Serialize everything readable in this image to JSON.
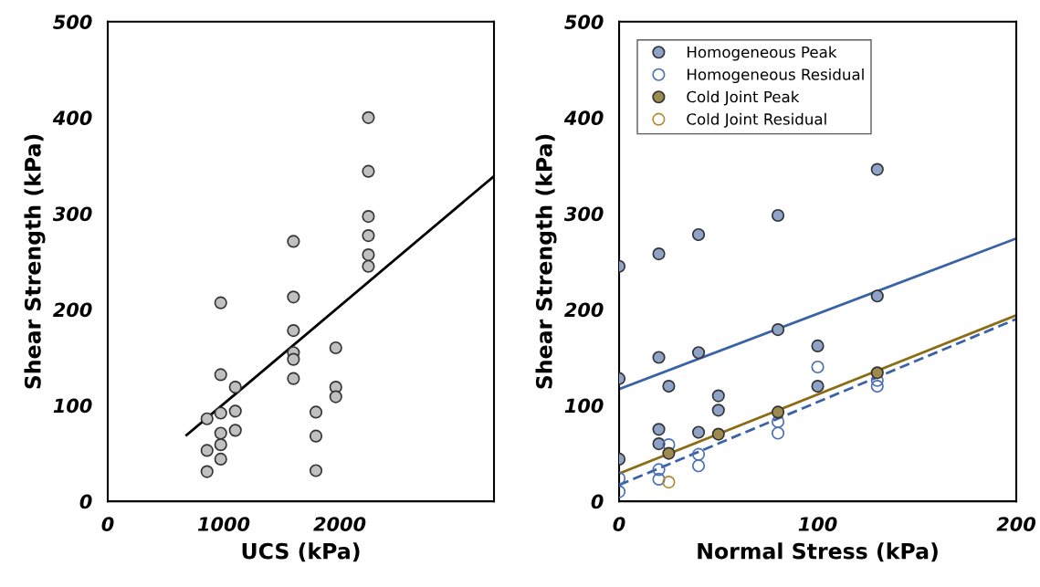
{
  "chart_data": [
    {
      "type": "scatter",
      "xlabel": "UCS (kPa)",
      "ylabel": "Shear Strength (kPa)",
      "xlim": [
        0,
        3330
      ],
      "xticks": [
        0,
        1000,
        2000
      ],
      "ylim": [
        0,
        500
      ],
      "yticks": [
        0,
        100,
        200,
        300,
        400,
        500
      ],
      "grid": false,
      "legend": false,
      "marker": "circle",
      "series": [
        {
          "color": "#c0c0c0",
          "x": [
            856,
            856,
            856,
            974,
            974,
            974,
            974,
            974,
            974,
            1100,
            1100,
            1100,
            1601,
            1601,
            1601,
            1601,
            1601,
            1601,
            1795,
            1795,
            1795,
            1966,
            1966,
            1966,
            2247,
            2247,
            2247,
            2247,
            2247,
            2247
          ],
          "values": [
            86,
            53,
            31,
            207,
            132,
            92,
            71,
            59,
            44,
            119,
            94,
            74,
            271,
            213,
            178,
            155,
            148,
            128,
            93,
            68,
            32,
            160,
            119,
            109,
            400,
            344,
            297,
            277,
            257,
            245
          ]
        },
        {
          "type": "line",
          "color": "#000000",
          "line_style": "solid",
          "marker": "none",
          "x": [
            680,
            3330
          ],
          "values": [
            69,
            339
          ]
        }
      ]
    },
    {
      "type": "scatter",
      "xlabel": "Normal Stress (kPa)",
      "ylabel": "Shear Strength (kPa)",
      "xlim": [
        0,
        200
      ],
      "xticks": [
        0,
        100,
        200
      ],
      "ylim": [
        0,
        500
      ],
      "yticks": [
        0,
        100,
        200,
        300,
        400,
        500
      ],
      "grid": false,
      "legend": "top left",
      "marker": "circle",
      "series": [
        {
          "name": "Homogeneous Peak",
          "color": "#8fa3c8",
          "x": [
            0,
            0,
            0,
            20,
            20,
            20,
            20,
            25,
            40,
            40,
            40,
            50,
            50,
            80,
            80,
            100,
            100,
            130,
            130
          ],
          "values": [
            245,
            128,
            44,
            258,
            150,
            75,
            60,
            120,
            278,
            155,
            72,
            110,
            95,
            298,
            179,
            162,
            120,
            346,
            214
          ]
        },
        {
          "name": "Homogeneous Residual",
          "color": "#4a6fb5",
          "x": [
            0,
            0,
            20,
            20,
            25,
            40,
            40,
            80,
            80,
            100,
            130,
            130
          ],
          "values": [
            24,
            10,
            33,
            23,
            59,
            49,
            37,
            83,
            71,
            140,
            126,
            120
          ]
        },
        {
          "name": "Cold Joint Peak",
          "color": "#9c8a4e",
          "x": [
            25,
            50,
            80,
            130
          ],
          "values": [
            50,
            70,
            93,
            134
          ]
        },
        {
          "name": "Cold Joint Residual",
          "color": "#b08a30",
          "x": [
            25
          ],
          "values": [
            20
          ]
        },
        {
          "type": "line",
          "color": "#3a62a7",
          "line_style": "solid",
          "marker": "none",
          "x": [
            0,
            200
          ],
          "values": [
            117,
            274
          ]
        },
        {
          "type": "line",
          "color": "#8b6d16",
          "line_style": "solid",
          "marker": "none",
          "x": [
            0,
            200
          ],
          "values": [
            29,
            194
          ]
        },
        {
          "type": "line",
          "color": "#3a62a7",
          "line_style": "dashed",
          "marker": "none",
          "x": [
            0,
            200
          ],
          "values": [
            17,
            190
          ]
        }
      ]
    }
  ]
}
